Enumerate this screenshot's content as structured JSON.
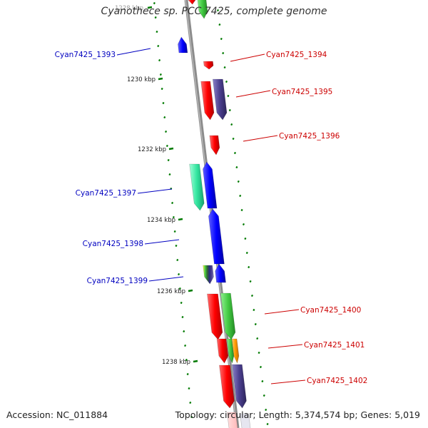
{
  "title": "Cyanothece sp. PCC 7425, complete genome",
  "accession": "Accession: NC_011884",
  "summary": "Topology: circular; Length: 5,374,574 bp; Genes: 5,019",
  "colors": {
    "backbone": "#8c8c8c",
    "tick": "#007a00",
    "label_left": "#0000c0",
    "label_right": "#cc0000",
    "red": "#ff0000",
    "blue": "#0000ff",
    "purple": "#4b3f8f",
    "seagreen": "#33e6a0",
    "green": "#44cc44",
    "orange": "#ff9900"
  },
  "chart_data": {
    "type": "genome-map",
    "ruler_labels": [
      "1228 kbp",
      "1230 kbp",
      "1232 kbp",
      "1234 kbp",
      "1236 kbp",
      "1238 kbp"
    ],
    "genes": [
      {
        "name": "Cyan7425_1393"
      },
      {
        "name": "Cyan7425_1394"
      },
      {
        "name": "Cyan7425_1395"
      },
      {
        "name": "Cyan7425_1396"
      },
      {
        "name": "Cyan7425_1397"
      },
      {
        "name": "Cyan7425_1398"
      },
      {
        "name": "Cyan7425_1399"
      },
      {
        "name": "Cyan7425_1400"
      },
      {
        "name": "Cyan7425_1401"
      },
      {
        "name": "Cyan7425_1402"
      }
    ]
  }
}
